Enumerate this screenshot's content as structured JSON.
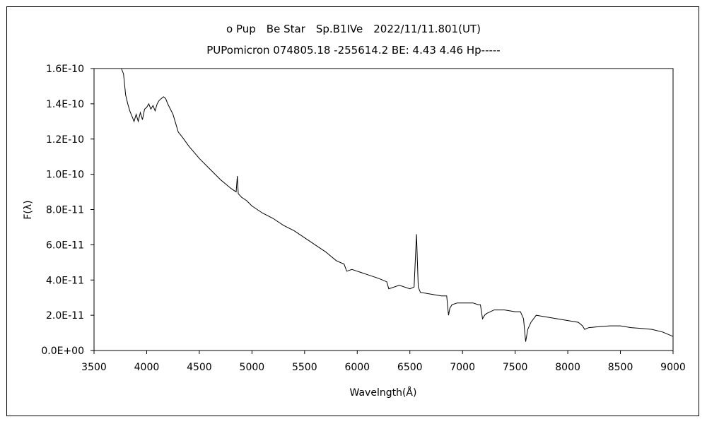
{
  "chart_data": {
    "type": "line",
    "title": "ο Pup　Be Star　Sp.B1IVe　2022/11/11.801(UT)",
    "subtitle": "PUPomicron 074805.18 -255614.2 BE: 4.43 4.46 Hp-----",
    "xlabel": "Wavelngth(Å)",
    "ylabel": "F(λ)",
    "xlim": [
      3500,
      9000
    ],
    "ylim": [
      0,
      1.6e-10
    ],
    "grid": false,
    "legend": "none",
    "xticks": [
      "3500",
      "4000",
      "4500",
      "5000",
      "5500",
      "6000",
      "6500",
      "7000",
      "7500",
      "8000",
      "8500",
      "9000"
    ],
    "yticks": [
      "0.0E+00",
      "2.0E-11",
      "4.0E-11",
      "6.0E-11",
      "8.0E-11",
      "1.0E-10",
      "1.2E-10",
      "1.4E-10",
      "1.6E-10"
    ],
    "series": [
      {
        "color": "#000000",
        "x": [
          3760,
          3780,
          3800,
          3820,
          3840,
          3860,
          3880,
          3900,
          3920,
          3940,
          3960,
          3980,
          4000,
          4020,
          4040,
          4060,
          4080,
          4100,
          4120,
          4140,
          4160,
          4180,
          4200,
          4250,
          4300,
          4340,
          4400,
          4500,
          4600,
          4700,
          4800,
          4850,
          4861,
          4870,
          4900,
          4950,
          5000,
          5100,
          5200,
          5300,
          5400,
          5500,
          5600,
          5700,
          5800,
          5875,
          5900,
          5950,
          6000,
          6100,
          6200,
          6280,
          6300,
          6400,
          6500,
          6540,
          6563,
          6580,
          6600,
          6700,
          6800,
          6850,
          6867,
          6880,
          6900,
          6950,
          7000,
          7100,
          7150,
          7170,
          7190,
          7210,
          7230,
          7300,
          7400,
          7500,
          7550,
          7580,
          7600,
          7620,
          7650,
          7700,
          7800,
          7900,
          8000,
          8100,
          8140,
          8160,
          8200,
          8300,
          8400,
          8500,
          8600,
          8700,
          8800,
          8900,
          9000
        ],
        "y": [
          1.6e-10,
          1.57e-10,
          1.45e-10,
          1.4e-10,
          1.36e-10,
          1.33e-10,
          1.3e-10,
          1.34e-10,
          1.3e-10,
          1.35e-10,
          1.31e-10,
          1.37e-10,
          1.38e-10,
          1.4e-10,
          1.37e-10,
          1.39e-10,
          1.36e-10,
          1.4e-10,
          1.42e-10,
          1.43e-10,
          1.44e-10,
          1.43e-10,
          1.4e-10,
          1.34e-10,
          1.24e-10,
          1.21e-10,
          1.16e-10,
          1.09e-10,
          1.03e-10,
          9.7e-11,
          9.2e-11,
          9e-11,
          9.9e-11,
          8.9e-11,
          8.7e-11,
          8.5e-11,
          8.2e-11,
          7.8e-11,
          7.5e-11,
          7.1e-11,
          6.8e-11,
          6.4e-11,
          6e-11,
          5.6e-11,
          5.1e-11,
          4.9e-11,
          4.5e-11,
          4.6e-11,
          4.5e-11,
          4.3e-11,
          4.1e-11,
          3.9e-11,
          3.5e-11,
          3.7e-11,
          3.5e-11,
          3.6e-11,
          6.6e-11,
          3.6e-11,
          3.3e-11,
          3.2e-11,
          3.1e-11,
          3.1e-11,
          2e-11,
          2.4e-11,
          2.6e-11,
          2.7e-11,
          2.7e-11,
          2.7e-11,
          2.6e-11,
          2.6e-11,
          1.8e-11,
          2e-11,
          2.1e-11,
          2.3e-11,
          2.3e-11,
          2.2e-11,
          2.2e-11,
          1.8e-11,
          5e-12,
          1.2e-11,
          1.6e-11,
          2e-11,
          1.9e-11,
          1.8e-11,
          1.7e-11,
          1.6e-11,
          1.4e-11,
          1.2e-11,
          1.3e-11,
          1.35e-11,
          1.4e-11,
          1.4e-11,
          1.3e-11,
          1.25e-11,
          1.2e-11,
          1.05e-11,
          8e-12
        ]
      }
    ]
  }
}
